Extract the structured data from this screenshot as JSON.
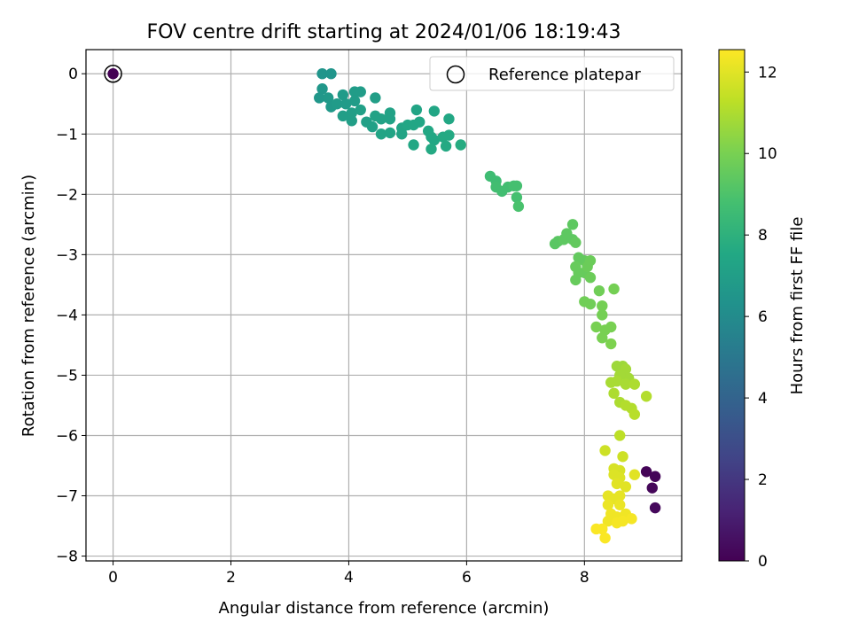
{
  "chart_data": {
    "type": "scatter",
    "title": "FOV centre drift starting at 2024/01/06 18:19:43",
    "xlabel": "Angular distance from reference (arcmin)",
    "ylabel": "Rotation from reference (arcmin)",
    "xlim": [
      -0.46,
      9.65
    ],
    "ylim": [
      -8.08,
      0.4
    ],
    "xticks": [
      0,
      2,
      4,
      6,
      8
    ],
    "yticks": [
      0,
      -1,
      -2,
      -3,
      -4,
      -5,
      -6,
      -7,
      -8
    ],
    "x_tick_labels": [
      "0",
      "2",
      "4",
      "6",
      "8"
    ],
    "y_tick_labels": [
      "0",
      "−1",
      "−2",
      "−3",
      "−4",
      "−5",
      "−6",
      "−7",
      "−8"
    ],
    "grid": true,
    "legend": {
      "label": "Reference platepar",
      "placement": "top-right"
    },
    "reference_point": {
      "x": 0,
      "y": 0
    },
    "colorbar": {
      "label": "Hours from first FF file",
      "colormap": "viridis",
      "range": [
        0,
        12.55
      ],
      "ticks": [
        0,
        2,
        4,
        6,
        8,
        10,
        12
      ],
      "tick_labels": [
        "0",
        "2",
        "4",
        "6",
        "8",
        "10",
        "12"
      ]
    },
    "series": [
      {
        "points": [
          [
            0.0,
            0.0,
            0.0
          ],
          [
            9.05,
            -6.6,
            0.1
          ],
          [
            9.2,
            -6.68,
            0.15
          ],
          [
            9.15,
            -6.87,
            0.2
          ],
          [
            9.2,
            -7.2,
            0.25
          ],
          [
            3.55,
            0.0,
            6.5
          ],
          [
            3.7,
            0.0,
            6.5
          ],
          [
            3.55,
            -0.25,
            6.6
          ],
          [
            3.5,
            -0.4,
            6.6
          ],
          [
            3.65,
            -0.4,
            6.7
          ],
          [
            3.7,
            -0.55,
            6.7
          ],
          [
            3.8,
            -0.5,
            6.8
          ],
          [
            3.9,
            -0.35,
            6.8
          ],
          [
            3.95,
            -0.5,
            6.8
          ],
          [
            4.1,
            -0.3,
            6.9
          ],
          [
            4.2,
            -0.3,
            6.9
          ],
          [
            4.1,
            -0.45,
            6.9
          ],
          [
            3.9,
            -0.7,
            7.0
          ],
          [
            4.05,
            -0.65,
            7.0
          ],
          [
            4.05,
            -0.78,
            7.0
          ],
          [
            4.2,
            -0.6,
            7.1
          ],
          [
            4.3,
            -0.8,
            7.1
          ],
          [
            4.4,
            -0.88,
            7.1
          ],
          [
            4.45,
            -0.7,
            7.2
          ],
          [
            4.45,
            -0.4,
            7.0
          ],
          [
            4.55,
            -0.75,
            7.2
          ],
          [
            4.7,
            -0.65,
            7.2
          ],
          [
            4.7,
            -0.75,
            7.2
          ],
          [
            4.55,
            -1.0,
            7.3
          ],
          [
            4.7,
            -0.98,
            7.3
          ],
          [
            4.9,
            -0.9,
            7.3
          ],
          [
            4.9,
            -1.0,
            7.3
          ],
          [
            5.0,
            -0.85,
            7.4
          ],
          [
            5.1,
            -0.85,
            7.4
          ],
          [
            5.15,
            -0.6,
            7.3
          ],
          [
            5.2,
            -0.8,
            7.4
          ],
          [
            5.1,
            -1.18,
            7.5
          ],
          [
            5.35,
            -0.95,
            7.5
          ],
          [
            5.4,
            -1.05,
            7.5
          ],
          [
            5.45,
            -0.62,
            7.4
          ],
          [
            5.45,
            -1.1,
            7.5
          ],
          [
            5.4,
            -1.25,
            7.6
          ],
          [
            5.6,
            -1.05,
            7.6
          ],
          [
            5.65,
            -1.2,
            7.6
          ],
          [
            5.7,
            -0.75,
            7.5
          ],
          [
            5.7,
            -1.02,
            7.6
          ],
          [
            5.9,
            -1.18,
            7.7
          ],
          [
            6.4,
            -1.7,
            8.6
          ],
          [
            6.5,
            -1.78,
            8.6
          ],
          [
            6.5,
            -1.88,
            8.7
          ],
          [
            6.6,
            -1.95,
            8.7
          ],
          [
            6.7,
            -1.88,
            8.7
          ],
          [
            6.8,
            -1.86,
            8.8
          ],
          [
            6.85,
            -1.86,
            8.8
          ],
          [
            6.85,
            -2.05,
            8.8
          ],
          [
            6.88,
            -2.2,
            8.9
          ],
          [
            7.5,
            -2.82,
            9.3
          ],
          [
            7.55,
            -2.78,
            9.3
          ],
          [
            7.65,
            -2.75,
            9.4
          ],
          [
            7.7,
            -2.65,
            9.4
          ],
          [
            7.8,
            -2.75,
            9.4
          ],
          [
            7.8,
            -2.5,
            9.4
          ],
          [
            7.85,
            -2.8,
            9.5
          ],
          [
            7.9,
            -3.05,
            9.5
          ],
          [
            8.0,
            -3.1,
            9.5
          ],
          [
            7.85,
            -3.2,
            9.6
          ],
          [
            7.9,
            -3.3,
            9.6
          ],
          [
            7.85,
            -3.42,
            9.6
          ],
          [
            8.0,
            -3.3,
            9.6
          ],
          [
            8.05,
            -3.2,
            9.7
          ],
          [
            8.1,
            -3.1,
            9.7
          ],
          [
            8.1,
            -3.38,
            9.7
          ],
          [
            8.0,
            -3.78,
            9.8
          ],
          [
            8.1,
            -3.82,
            9.8
          ],
          [
            8.25,
            -3.6,
            9.8
          ],
          [
            8.3,
            -3.85,
            9.9
          ],
          [
            8.3,
            -4.0,
            9.9
          ],
          [
            8.5,
            -3.57,
            9.9
          ],
          [
            8.2,
            -4.2,
            10.0
          ],
          [
            8.35,
            -4.25,
            10.0
          ],
          [
            8.3,
            -4.38,
            10.0
          ],
          [
            8.45,
            -4.2,
            10.0
          ],
          [
            8.45,
            -4.48,
            10.1
          ],
          [
            8.55,
            -4.85,
            10.7
          ],
          [
            8.65,
            -4.85,
            10.7
          ],
          [
            8.7,
            -4.9,
            10.8
          ],
          [
            8.75,
            -5.05,
            10.8
          ],
          [
            8.6,
            -5.0,
            10.8
          ],
          [
            8.55,
            -5.1,
            10.9
          ],
          [
            8.45,
            -5.12,
            10.9
          ],
          [
            8.7,
            -5.15,
            10.9
          ],
          [
            8.85,
            -5.15,
            11.0
          ],
          [
            8.5,
            -5.3,
            11.0
          ],
          [
            8.6,
            -5.45,
            11.0
          ],
          [
            8.7,
            -5.5,
            11.1
          ],
          [
            8.8,
            -5.55,
            11.1
          ],
          [
            8.85,
            -5.65,
            11.2
          ],
          [
            9.05,
            -5.35,
            11.1
          ],
          [
            8.6,
            -6.0,
            11.3
          ],
          [
            8.35,
            -6.25,
            11.6
          ],
          [
            8.65,
            -6.35,
            11.6
          ],
          [
            8.5,
            -6.55,
            11.8
          ],
          [
            8.6,
            -6.58,
            11.8
          ],
          [
            8.5,
            -6.65,
            11.9
          ],
          [
            8.6,
            -6.7,
            11.9
          ],
          [
            8.55,
            -6.8,
            12.0
          ],
          [
            8.7,
            -6.85,
            12.0
          ],
          [
            8.85,
            -6.65,
            12.0
          ],
          [
            8.4,
            -7.0,
            12.1
          ],
          [
            8.5,
            -7.05,
            12.1
          ],
          [
            8.6,
            -7.0,
            12.1
          ],
          [
            8.4,
            -7.15,
            12.2
          ],
          [
            8.6,
            -7.15,
            12.2
          ],
          [
            8.45,
            -7.3,
            12.3
          ],
          [
            8.55,
            -7.35,
            12.3
          ],
          [
            8.7,
            -7.3,
            12.3
          ],
          [
            8.4,
            -7.42,
            12.3
          ],
          [
            8.55,
            -7.45,
            12.4
          ],
          [
            8.65,
            -7.42,
            12.4
          ],
          [
            8.8,
            -7.38,
            12.4
          ],
          [
            8.3,
            -7.55,
            12.5
          ],
          [
            8.2,
            -7.55,
            12.5
          ],
          [
            8.35,
            -7.7,
            12.5
          ]
        ]
      }
    ]
  }
}
